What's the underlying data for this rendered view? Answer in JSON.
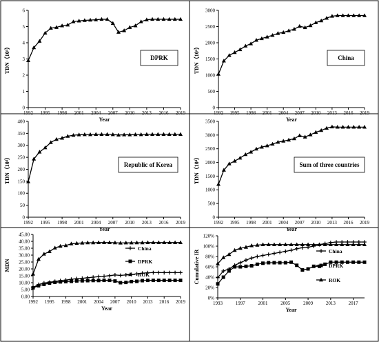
{
  "chart_data": [
    {
      "type": "line",
      "title": "DPRK",
      "xlabel": "Year",
      "ylabel": "TDN（10⁴）",
      "xlim": [
        1992,
        2019
      ],
      "ylim": [
        0,
        6
      ],
      "xticks": [
        1992,
        1995,
        1998,
        2001,
        2004,
        2007,
        2010,
        2013,
        2016,
        2019
      ],
      "yticks": [
        0,
        1,
        2,
        3,
        4,
        5,
        6
      ],
      "ytick_labels": [
        "0",
        "1",
        "2",
        "3",
        "4",
        "5",
        "6"
      ],
      "series": [
        {
          "marker": "triangle",
          "x": [
            1992,
            1993,
            1994,
            1995,
            1996,
            1997,
            1998,
            1999,
            2000,
            2001,
            2002,
            2003,
            2004,
            2005,
            2006,
            2007,
            2008,
            2009,
            2010,
            2011,
            2012,
            2013,
            2014,
            2015,
            2016,
            2017,
            2018,
            2019
          ],
          "values": [
            2.9,
            3.7,
            4.1,
            4.6,
            4.9,
            4.95,
            5.05,
            5.1,
            5.3,
            5.35,
            5.38,
            5.4,
            5.42,
            5.45,
            5.45,
            5.2,
            4.65,
            4.75,
            4.95,
            5.05,
            5.3,
            5.42,
            5.45,
            5.45,
            5.45,
            5.45,
            5.45,
            5.45
          ]
        }
      ]
    },
    {
      "type": "line",
      "title": "China",
      "xlabel": "Year",
      "ylabel": "TDN（10⁴）",
      "xlim": [
        1992,
        2019
      ],
      "ylim": [
        0,
        3000
      ],
      "xticks": [
        1992,
        1995,
        1998,
        2001,
        2004,
        2007,
        2010,
        2013,
        2016,
        2019
      ],
      "yticks": [
        0,
        500,
        1000,
        1500,
        2000,
        2500,
        3000
      ],
      "ytick_labels": [
        "0",
        "500",
        "1000",
        "1500",
        "2000",
        "2500",
        "3000"
      ],
      "series": [
        {
          "marker": "triangle",
          "x": [
            1992,
            1993,
            1994,
            1995,
            1996,
            1997,
            1998,
            1999,
            2000,
            2001,
            2002,
            2003,
            2004,
            2005,
            2006,
            2007,
            2008,
            2009,
            2010,
            2011,
            2012,
            2013,
            2014,
            2015,
            2016,
            2017,
            2018,
            2019
          ],
          "values": [
            1030,
            1440,
            1610,
            1700,
            1790,
            1900,
            1970,
            2080,
            2130,
            2180,
            2230,
            2290,
            2320,
            2370,
            2420,
            2510,
            2470,
            2530,
            2620,
            2680,
            2760,
            2820,
            2840,
            2840,
            2840,
            2840,
            2840,
            2840
          ]
        }
      ]
    },
    {
      "type": "line",
      "title": "Republic of Korea",
      "xlabel": "Year",
      "ylabel": "TDN（10⁴）",
      "xlim": [
        1992,
        2019
      ],
      "ylim": [
        0,
        400
      ],
      "xticks": [
        1992,
        1995,
        1998,
        2001,
        2004,
        2007,
        2010,
        2013,
        2016,
        2019
      ],
      "yticks": [
        0,
        50,
        100,
        150,
        200,
        250,
        300,
        350,
        400
      ],
      "ytick_labels": [
        "0",
        "50",
        "100",
        "150",
        "200",
        "250",
        "300",
        "350",
        "400"
      ],
      "series": [
        {
          "marker": "triangle",
          "x": [
            1992,
            1993,
            1994,
            1995,
            1996,
            1997,
            1998,
            1999,
            2000,
            2001,
            2002,
            2003,
            2004,
            2005,
            2006,
            2007,
            2008,
            2009,
            2010,
            2011,
            2012,
            2013,
            2014,
            2015,
            2016,
            2017,
            2018,
            2019
          ],
          "values": [
            148,
            243,
            272,
            290,
            312,
            325,
            330,
            338,
            342,
            344,
            345,
            345,
            346,
            346,
            346,
            345,
            343,
            344,
            344,
            345,
            345,
            346,
            346,
            346,
            346,
            346,
            346,
            346
          ]
        }
      ]
    },
    {
      "type": "line",
      "title": "Sum of three countries",
      "xlabel": "Year",
      "ylabel": "TDN（10⁴）",
      "xlim": [
        1992,
        2019
      ],
      "ylim": [
        0,
        3500
      ],
      "xticks": [
        1992,
        1995,
        1998,
        2001,
        2004,
        2007,
        2010,
        2013,
        2016,
        2019
      ],
      "yticks": [
        0,
        500,
        1000,
        1500,
        2000,
        2500,
        3000,
        3500
      ],
      "ytick_labels": [
        "0",
        "500",
        "1000",
        "1500",
        "2000",
        "2500",
        "3000",
        "3500"
      ],
      "series": [
        {
          "marker": "triangle",
          "x": [
            1992,
            1993,
            1994,
            1995,
            1996,
            1997,
            1998,
            1999,
            2000,
            2001,
            2002,
            2003,
            2004,
            2005,
            2006,
            2007,
            2008,
            2009,
            2010,
            2011,
            2012,
            2013,
            2014,
            2015,
            2016,
            2017,
            2018,
            2019
          ],
          "values": [
            1200,
            1720,
            1950,
            2050,
            2160,
            2290,
            2380,
            2490,
            2560,
            2610,
            2670,
            2740,
            2780,
            2820,
            2870,
            2980,
            2930,
            3010,
            3100,
            3170,
            3250,
            3300,
            3290,
            3290,
            3290,
            3290,
            3290,
            3290
          ]
        }
      ]
    },
    {
      "type": "line",
      "title": "",
      "xlabel": "Year",
      "ylabel": "MDN",
      "xlim": [
        1992,
        2019
      ],
      "ylim": [
        0,
        45
      ],
      "xticks": [
        1992,
        1995,
        1998,
        2001,
        2004,
        2007,
        2010,
        2013,
        2016,
        2019
      ],
      "yticks": [
        0,
        5,
        10,
        15,
        20,
        25,
        30,
        35,
        40,
        45
      ],
      "ytick_labels": [
        "0.00",
        "5.00",
        "10.00",
        "15.00",
        "20.00",
        "25.00",
        "30.00",
        "35.00",
        "40.00",
        "45.00"
      ],
      "legend_position": "right",
      "series": [
        {
          "name": "China",
          "marker": "plus",
          "x": [
            1992,
            1993,
            1994,
            1995,
            1996,
            1997,
            1998,
            1999,
            2000,
            2001,
            2002,
            2003,
            2004,
            2005,
            2006,
            2007,
            2008,
            2009,
            2010,
            2011,
            2012,
            2013,
            2014,
            2015,
            2016,
            2017,
            2018,
            2019
          ],
          "values": [
            6.5,
            8.7,
            9.8,
            10.3,
            10.9,
            11.5,
            11.9,
            12.5,
            12.9,
            13.2,
            13.6,
            14.0,
            14.4,
            14.7,
            15.1,
            15.6,
            15.3,
            15.6,
            16.0,
            16.4,
            16.9,
            17.2,
            17.3,
            17.3,
            17.3,
            17.3,
            17.3,
            17.3
          ]
        },
        {
          "name": "DPRK",
          "marker": "square",
          "x": [
            1992,
            1993,
            1994,
            1995,
            1996,
            1997,
            1998,
            1999,
            2000,
            2001,
            2002,
            2003,
            2004,
            2005,
            2006,
            2007,
            2008,
            2009,
            2010,
            2011,
            2012,
            2013,
            2014,
            2015,
            2016,
            2017,
            2018,
            2019
          ],
          "values": [
            6.3,
            7.8,
            8.8,
            9.7,
            10.3,
            10.6,
            10.8,
            11.0,
            11.3,
            11.4,
            11.5,
            11.6,
            11.6,
            11.7,
            11.7,
            11.2,
            10.0,
            10.2,
            10.8,
            11.0,
            11.5,
            11.7,
            11.7,
            11.7,
            11.7,
            11.7,
            11.7,
            11.7
          ]
        },
        {
          "name": "ROK",
          "marker": "triangle",
          "x": [
            1992,
            1993,
            1994,
            1995,
            1996,
            1997,
            1998,
            1999,
            2000,
            2001,
            2002,
            2003,
            2004,
            2005,
            2006,
            2007,
            2008,
            2009,
            2010,
            2011,
            2012,
            2013,
            2014,
            2015,
            2016,
            2017,
            2018,
            2019
          ],
          "values": [
            16.3,
            27.0,
            30.8,
            32.6,
            35.2,
            36.5,
            37.0,
            38.2,
            38.6,
            38.8,
            39.0,
            39.0,
            39.1,
            39.1,
            39.1,
            39.0,
            38.8,
            38.9,
            38.9,
            39.0,
            39.0,
            39.1,
            39.1,
            39.1,
            39.1,
            39.1,
            39.1,
            39.1
          ]
        }
      ]
    },
    {
      "type": "line",
      "title": "",
      "xlabel": "Year",
      "ylabel": "Cumulative IR",
      "xlim": [
        1993,
        2019
      ],
      "ylim": [
        0,
        120
      ],
      "xticks": [
        1993,
        1997,
        2001,
        2005,
        2009,
        2013,
        2017
      ],
      "yticks": [
        0,
        20,
        40,
        60,
        80,
        100,
        120
      ],
      "ytick_labels": [
        "0%",
        "20%",
        "40%",
        "60%",
        "80%",
        "100%",
        "120%"
      ],
      "legend_position": "right",
      "series": [
        {
          "name": "China",
          "marker": "plus",
          "x": [
            1993,
            1994,
            1995,
            1996,
            1997,
            1998,
            1999,
            2000,
            2001,
            2002,
            2003,
            2004,
            2005,
            2006,
            2007,
            2008,
            2009,
            2010,
            2011,
            2012,
            2013,
            2014,
            2015,
            2016,
            2017,
            2018,
            2019
          ],
          "values": [
            39,
            52,
            56,
            63,
            68,
            73,
            77,
            80,
            82,
            84,
            86,
            88,
            90,
            92,
            95,
            97,
            98,
            100,
            103,
            105,
            107,
            108,
            108,
            108,
            108,
            108,
            108
          ]
        },
        {
          "name": "DPRK",
          "marker": "square",
          "x": [
            1993,
            1994,
            1995,
            1996,
            1997,
            1998,
            1999,
            2000,
            2001,
            2002,
            2003,
            2004,
            2005,
            2006,
            2007,
            2008,
            2009,
            2010,
            2011,
            2012,
            2013,
            2014,
            2015,
            2016,
            2017,
            2018,
            2019
          ],
          "values": [
            27,
            40,
            52,
            60,
            60,
            61,
            62,
            65,
            67,
            68,
            68,
            68,
            68,
            69,
            63,
            54,
            56,
            61,
            61,
            65,
            69,
            69,
            69,
            69,
            69,
            69,
            69
          ]
        },
        {
          "name": "ROK",
          "marker": "triangle",
          "x": [
            1993,
            1994,
            1995,
            1996,
            1997,
            1998,
            1999,
            2000,
            2001,
            2002,
            2003,
            2004,
            2005,
            2006,
            2007,
            2008,
            2009,
            2010,
            2011,
            2012,
            2013,
            2014,
            2015,
            2016,
            2017,
            2018,
            2019
          ],
          "values": [
            66,
            78,
            84,
            92,
            96,
            98,
            101,
            102,
            103,
            103,
            103,
            103,
            103,
            103,
            103,
            103,
            103,
            103,
            103,
            103,
            103,
            103,
            103,
            103,
            103,
            103,
            103
          ]
        }
      ]
    }
  ]
}
